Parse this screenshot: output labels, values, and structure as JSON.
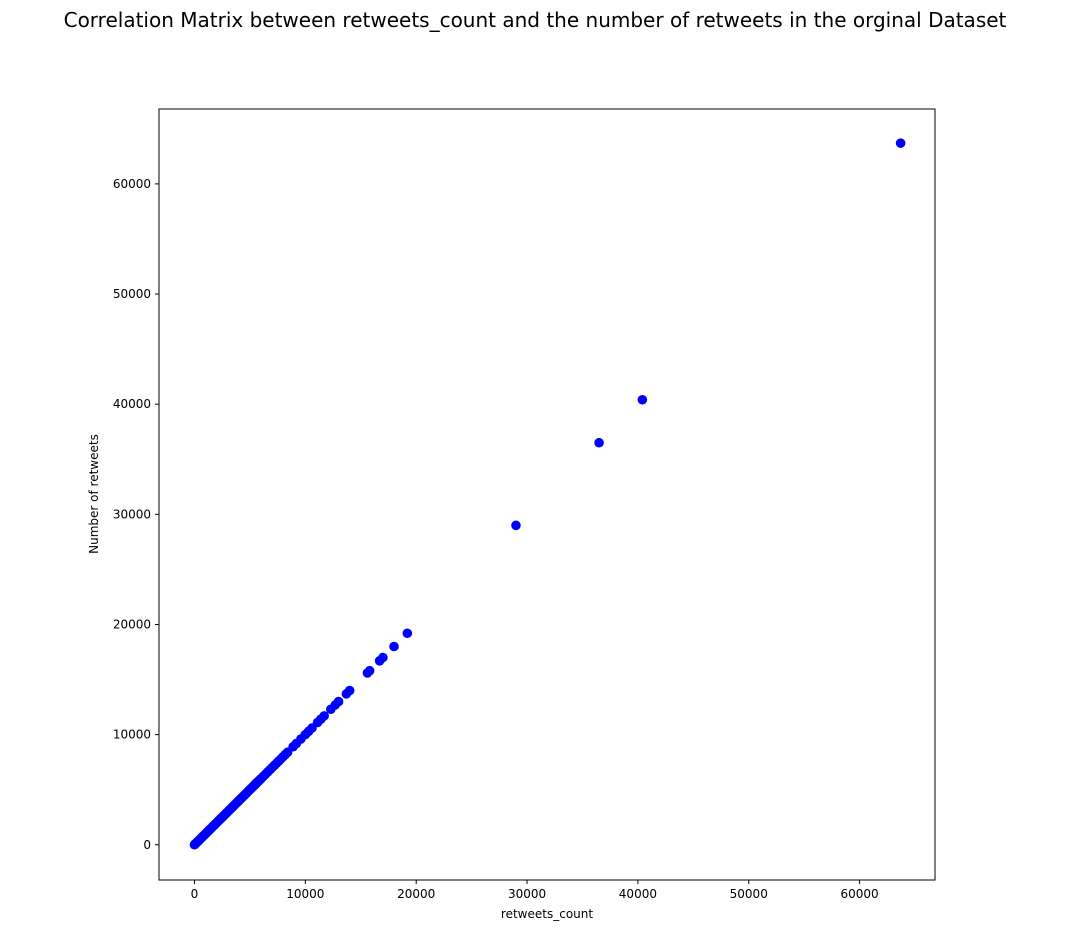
{
  "chart_data": {
    "type": "scatter",
    "title": "Correlation Matrix between retweets_count and the number of retweets in the orginal Dataset",
    "xlabel": "retweets_count",
    "ylabel": "Number of retweets",
    "xlim": [
      -3200,
      66800
    ],
    "ylim": [
      -3200,
      66800
    ],
    "xticks": [
      0,
      10000,
      20000,
      30000,
      40000,
      50000,
      60000
    ],
    "yticks": [
      0,
      10000,
      20000,
      30000,
      40000,
      50000,
      60000
    ],
    "marker_color": "#0000ff",
    "grid": false,
    "legend": "none",
    "series": [
      {
        "x": [
          0,
          50,
          100,
          200,
          300,
          400,
          500,
          600,
          700,
          800,
          900,
          1000,
          1100,
          1200,
          1300,
          1400,
          1500,
          1600,
          1700,
          1800,
          1900,
          2000,
          2100,
          2200,
          2300,
          2400,
          2500,
          2600,
          2700,
          2800,
          2900,
          3000,
          3100,
          3200,
          3300,
          3400,
          3500,
          3600,
          3700,
          3800,
          3900,
          4000,
          4100,
          4200,
          4300,
          4400,
          4500,
          4600,
          4700,
          4800,
          4900,
          5000,
          5100,
          5200,
          5300,
          5400,
          5500,
          5600,
          5700,
          5800,
          5900,
          6000,
          6200,
          6400,
          6600,
          6800,
          7000,
          7200,
          7400,
          7600,
          7800,
          8000,
          8200,
          8400,
          8900,
          9200,
          9600,
          10000,
          10300,
          10600,
          11100,
          11400,
          11700,
          12300,
          12700,
          13000,
          13700,
          14000,
          15600,
          15800,
          16700,
          17000,
          18000,
          19200,
          29000,
          36500,
          40400,
          63700
        ],
        "y": [
          0,
          50,
          100,
          200,
          300,
          400,
          500,
          600,
          700,
          800,
          900,
          1000,
          1100,
          1200,
          1300,
          1400,
          1500,
          1600,
          1700,
          1800,
          1900,
          2000,
          2100,
          2200,
          2300,
          2400,
          2500,
          2600,
          2700,
          2800,
          2900,
          3000,
          3100,
          3200,
          3300,
          3400,
          3500,
          3600,
          3700,
          3800,
          3900,
          4000,
          4100,
          4200,
          4300,
          4400,
          4500,
          4600,
          4700,
          4800,
          4900,
          5000,
          5100,
          5200,
          5300,
          5400,
          5500,
          5600,
          5700,
          5800,
          5900,
          6000,
          6200,
          6400,
          6600,
          6800,
          7000,
          7200,
          7400,
          7600,
          7800,
          8000,
          8200,
          8400,
          8900,
          9200,
          9600,
          10000,
          10300,
          10600,
          11100,
          11400,
          11700,
          12300,
          12700,
          13000,
          13700,
          14000,
          15600,
          15800,
          16700,
          17000,
          18000,
          19200,
          29000,
          36500,
          40400,
          63700
        ]
      }
    ]
  }
}
